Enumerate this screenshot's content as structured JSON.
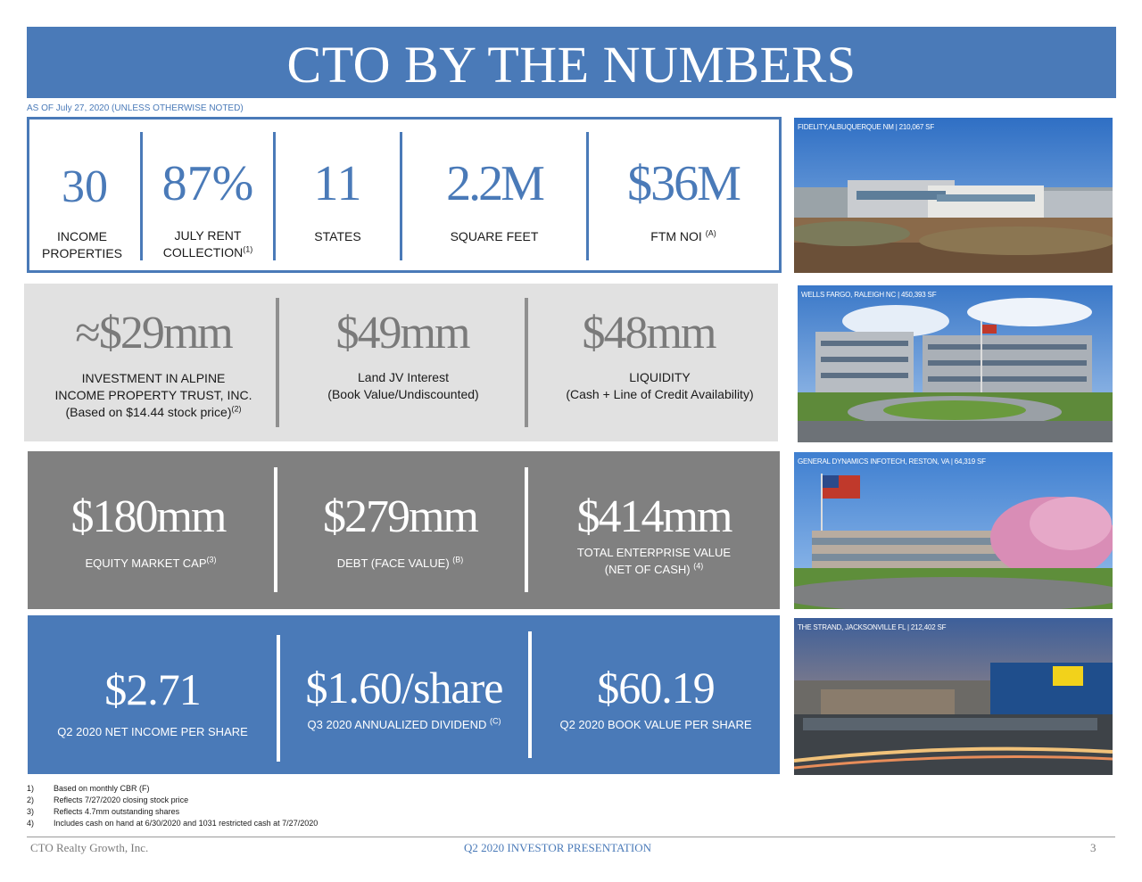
{
  "title": "CTO BY THE NUMBERS",
  "as_of": "AS OF July 27, 2020 (UNLESS OTHERWISE NOTED)",
  "panel1": {
    "stats": [
      {
        "value": "30",
        "label_lines": [
          "INCOME",
          "PROPERTIES"
        ]
      },
      {
        "value": "87%",
        "label_lines": [
          "JULY RENT",
          "COLLECTION"
        ],
        "sup": "(1)"
      },
      {
        "value": "11",
        "label_lines": [
          "STATES"
        ]
      },
      {
        "value": "2.2M",
        "label_lines": [
          "SQUARE FEET"
        ]
      },
      {
        "value": "$36M",
        "label_lines": [
          "FTM NOI "
        ],
        "sup": "(A)"
      }
    ]
  },
  "panel2": {
    "stats": [
      {
        "value": "≈$29mm",
        "label_lines": [
          "INVESTMENT IN ALPINE",
          "INCOME PROPERTY TRUST, INC.",
          "(Based on $14.44 stock price)"
        ],
        "sup": "(2)"
      },
      {
        "value": "$49mm",
        "label_lines": [
          "Land JV Interest",
          "(Book Value/Undiscounted)"
        ]
      },
      {
        "value": "$48mm",
        "label_lines": [
          "LIQUIDITY",
          "(Cash + Line of Credit Availability)"
        ]
      }
    ]
  },
  "panel3": {
    "stats": [
      {
        "value": "$180mm",
        "label_lines": [
          "EQUITY MARKET CAP"
        ],
        "sup": "(3)"
      },
      {
        "value": "$279mm",
        "label_lines": [
          "DEBT (FACE VALUE) "
        ],
        "sup": "(B)"
      },
      {
        "value": "$414mm",
        "label_lines": [
          "TOTAL ENTERPRISE VALUE",
          "(NET OF CASH) "
        ],
        "sup": "(4)"
      }
    ]
  },
  "panel4": {
    "stats": [
      {
        "value": "$2.71",
        "label_lines": [
          "Q2 2020 NET INCOME PER SHARE"
        ]
      },
      {
        "value": "$1.60/share",
        "label_lines": [
          "Q3 2020 ANNUALIZED DIVIDEND "
        ],
        "sup": "(C)"
      },
      {
        "value": "$60.19",
        "label_lines": [
          "Q2 2020 BOOK VALUE PER SHARE"
        ]
      }
    ]
  },
  "photos": [
    {
      "caption": "FIDELITY,ALBUQUERQUE NM | 210,067 SF"
    },
    {
      "caption": "WELLS FARGO, RALEIGH NC | 450,393 SF"
    },
    {
      "caption": "GENERAL DYNAMICS INFOTECH, RESTON, VA | 64,319 SF"
    },
    {
      "caption": "THE STRAND, JACKSONVILLE FL | 212,402 SF"
    }
  ],
  "footnotes": [
    {
      "num": "1)",
      "text": "Based on monthly CBR (F)"
    },
    {
      "num": "2)",
      "text": "Reflects 7/27/2020 closing stock price"
    },
    {
      "num": "3)",
      "text": "Reflects 4.7mm outstanding shares"
    },
    {
      "num": "4)",
      "text": "Includes cash on hand at 6/30/2020 and 1031 restricted cash at 7/27/2020"
    }
  ],
  "footer": {
    "left": "CTO Realty Growth, Inc.",
    "center": "Q2 2020 INVESTOR PRESENTATION",
    "page": "3"
  },
  "colors": {
    "accent": "#4a7ab8",
    "panel_gray": "#808080",
    "panel_light": "#e1e1e1"
  }
}
